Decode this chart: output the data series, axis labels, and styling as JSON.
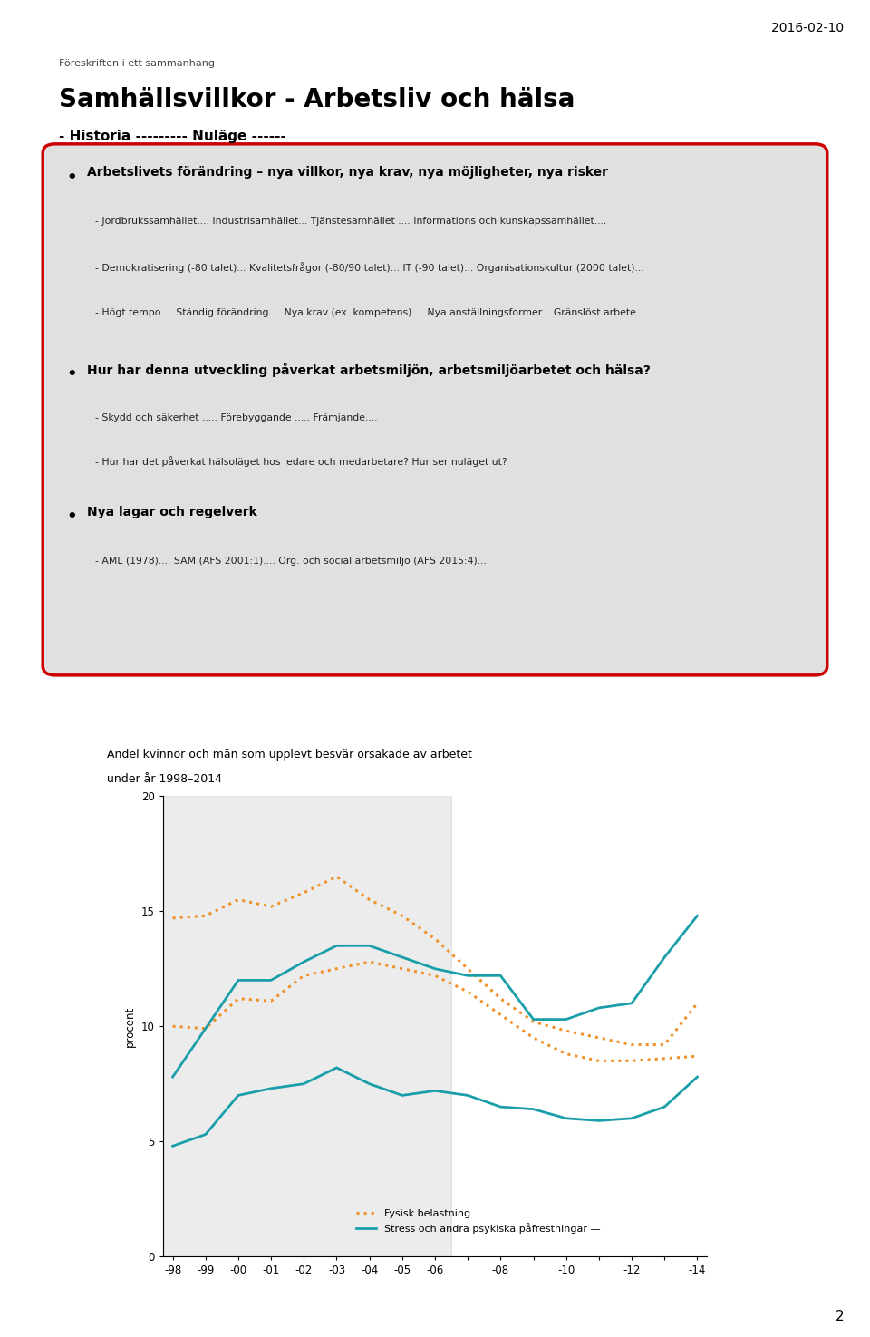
{
  "date_text": "2016-02-10",
  "slide_bg": "#e0e0e0",
  "red_border_color": "#cc0000",
  "title_small": "Föreskriften i ett sammanhang",
  "title_main": "Samhällsvillkor - Arbetsliv och hälsa",
  "title_sub": "- Historia --------- Nuläge ------",
  "bullet1_header": "Arbetslivets förändring – nya villkor, nya krav, nya möjligheter, nya risker",
  "bullet1_lines": [
    "- Jordbrukssamhället.... Industrisamhället... Tjänstesamhället .... Informations och kunskapssamhället....",
    "- Demokratisering (-80 talet)... Kvalitetsfrågor (-80/90 talet)... IT (-90 talet)... Organisationskultur (2000 talet)...",
    "- Högt tempo.... Ständig förändring.... Nya krav (ex. kompetens).... Nya anställningsformer... Gränslöst arbete..."
  ],
  "bullet2_header": "Hur har denna utveckling påverkat arbetsmiljön, arbetsmiljöarbetet och hälsa?",
  "bullet2_lines": [
    "- Skydd och säkerhet ..... Förebyggande ..... Främjande....",
    "- Hur har det påverkat hälsoläget hos ledare och medarbetare? Hur ser nuläget ut?"
  ],
  "bullet3_header": "Nya lagar och regelverk",
  "bullet3_lines": [
    "- AML (1978).... SAM (AFS 2001:1).... Org. och social arbetsmiljö (AFS 2015:4)...."
  ],
  "chart_title_line1": "Andel kvinnor och män som upplevt besvär orsakade av arbetet",
  "chart_title_line2": "under år 1998–2014",
  "chart_ylabel": "procent",
  "chart_yticks": [
    0,
    5,
    10,
    15,
    20
  ],
  "chart_xticks": [
    "-98",
    "-99",
    "-00",
    "-01",
    "-02",
    "-03",
    "-04",
    "-05",
    "-06",
    "",
    "-08",
    "",
    "-10",
    "",
    "-12",
    "",
    "-14"
  ],
  "phys_women": [
    14.7,
    14.8,
    15.5,
    15.2,
    15.8,
    16.5,
    15.5,
    14.8,
    13.8,
    12.5,
    11.2,
    10.2,
    9.8,
    9.5,
    9.2,
    9.2,
    11.0
  ],
  "phys_men": [
    10.0,
    9.9,
    11.2,
    11.1,
    12.2,
    12.5,
    12.8,
    12.5,
    12.2,
    11.5,
    10.5,
    9.5,
    8.8,
    8.5,
    8.5,
    8.6,
    8.7
  ],
  "stress_women": [
    7.8,
    9.9,
    12.0,
    12.0,
    12.8,
    13.5,
    13.5,
    13.0,
    12.5,
    12.2,
    12.2,
    10.3,
    10.3,
    10.8,
    11.0,
    13.0,
    14.8
  ],
  "stress_men": [
    4.8,
    5.3,
    7.0,
    7.3,
    7.5,
    8.2,
    7.5,
    7.0,
    7.2,
    7.0,
    6.5,
    6.4,
    6.0,
    5.9,
    6.0,
    6.5,
    7.8
  ],
  "physical_color": "#f0922a",
  "stress_color": "#1a9eaa",
  "legend_physical": "Fysisk belastning .....",
  "legend_stress": "Stress och andra psykiska påfrestningar —",
  "page_number": "2"
}
